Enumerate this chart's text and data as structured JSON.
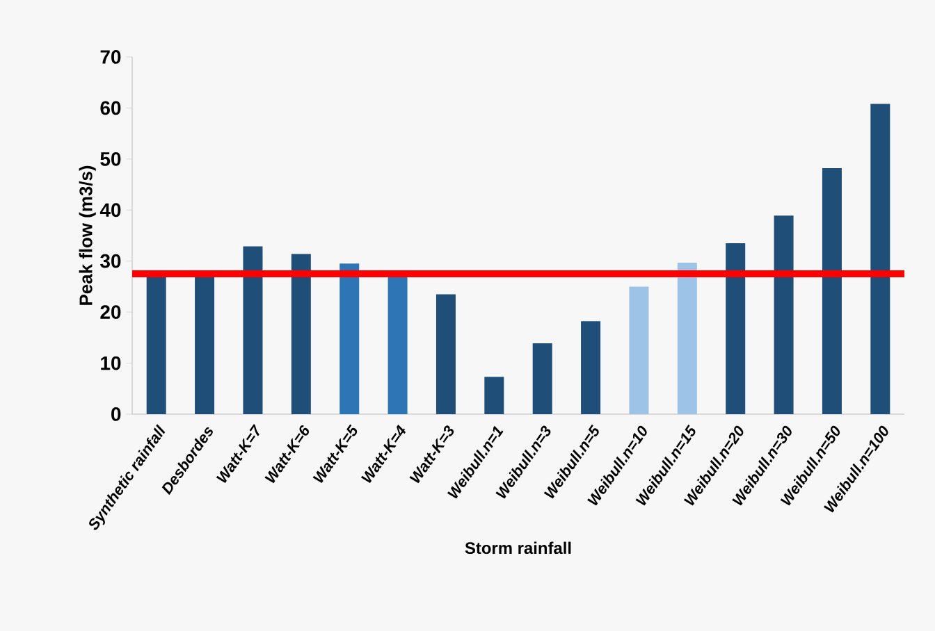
{
  "chart_data": {
    "type": "bar",
    "xlabel": "Storm rainfall",
    "ylabel": "Peak flow  (m3/s)",
    "categories": [
      "Synthetic rainfall",
      "Desbordes",
      "Watt-K=7",
      "Watt-K=6",
      "Watt-K=5",
      "Watt-K=4",
      "Watt-K=3",
      "Weibull.n=1",
      "Weibull.n=3",
      "Weibull.n=5",
      "Weibull.n=10",
      "Weibull.n=15",
      "Weibull.n=20",
      "Weibull.n=30",
      "Weibull.n=50",
      "Weibull.n=100"
    ],
    "values": [
      27,
      27,
      32.9,
      31.4,
      29.5,
      27,
      23.5,
      7.3,
      13.9,
      18.2,
      25,
      29.7,
      33.5,
      38.9,
      48.2,
      60.8
    ],
    "colors": [
      "#1f4e79",
      "#1f4e79",
      "#1f4e79",
      "#1f4e79",
      "#2e75b6",
      "#2e75b6",
      "#1f4e79",
      "#1f4e79",
      "#1f4e79",
      "#1f4e79",
      "#9dc3e6",
      "#9dc3e6",
      "#1f4e79",
      "#1f4e79",
      "#1f4e79",
      "#1f4e79"
    ],
    "ylim": [
      0,
      70
    ],
    "yticks": [
      0,
      10,
      20,
      30,
      40,
      50,
      60,
      70
    ],
    "grid": false,
    "ref_lines": [
      {
        "axis": "y",
        "value": 27.5,
        "color": "#ff0000"
      }
    ]
  }
}
